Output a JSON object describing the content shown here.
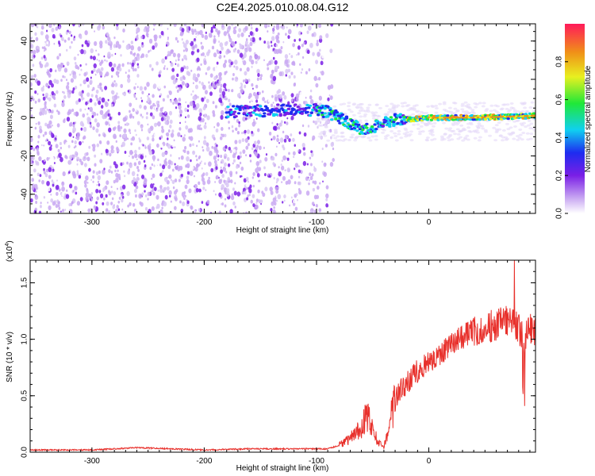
{
  "figure_title": "C2E4.2025.010.08.04.G12",
  "chart_data": [
    {
      "type": "heatmap",
      "title": "C2E4.2025.010.08.04.G12",
      "xlabel": "Height of straight line (km)",
      "ylabel": "Frequency (Hz)",
      "xlim": [
        -355,
        95
      ],
      "ylim": [
        -50,
        49
      ],
      "xticks": [
        -300,
        -200,
        -100,
        0
      ],
      "yticks": [
        -40,
        -20,
        0,
        20,
        40
      ],
      "colorbar": {
        "label": "Normalized spectral amplitude",
        "range": [
          0.0,
          1.0
        ],
        "ticks": [
          0.0,
          0.2,
          0.4,
          0.6,
          0.8
        ],
        "colormap": "rainbow (white-violet-blue-cyan-green-yellow-red)"
      },
      "signal_track": [
        {
          "x": -180,
          "y": 3
        },
        {
          "x": -130,
          "y": 4
        },
        {
          "x": -100,
          "y": 4
        },
        {
          "x": -90,
          "y": 3
        },
        {
          "x": -80,
          "y": 0
        },
        {
          "x": -70,
          "y": -3
        },
        {
          "x": -60,
          "y": -6
        },
        {
          "x": -50,
          "y": -5
        },
        {
          "x": -40,
          "y": -3
        },
        {
          "x": -30,
          "y": -1
        },
        {
          "x": -20,
          "y": -1
        },
        {
          "x": 0,
          "y": 0
        },
        {
          "x": 40,
          "y": 0
        },
        {
          "x": 95,
          "y": 1
        }
      ],
      "noise_region_x": [
        -355,
        -95
      ],
      "grid": false
    },
    {
      "type": "line",
      "xlabel": "Height of straight line (km)",
      "ylabel": "SNR (10 * v/v)",
      "y_multiplier": "(x10",
      "y_multiplier_exp": "4",
      "y_multiplier_close": ")",
      "xlim": [
        -355,
        95
      ],
      "ylim": [
        0,
        1.7
      ],
      "xticks": [
        -300,
        -200,
        -100,
        0
      ],
      "yticks": [
        0.0,
        0.5,
        1.0,
        1.5
      ],
      "color": "#e8312c",
      "series": [
        {
          "x": [
            -355,
            -300,
            -260,
            -200,
            -160,
            -130,
            -110,
            -90,
            -80,
            -70,
            -60,
            -55,
            -50,
            -45,
            -40,
            -35,
            -30,
            -25,
            -20,
            -10,
            0,
            10,
            20,
            30,
            40,
            50,
            60,
            70,
            80,
            85,
            90,
            95
          ],
          "values": [
            0.02,
            0.02,
            0.04,
            0.02,
            0.03,
            0.03,
            0.03,
            0.03,
            0.06,
            0.12,
            0.22,
            0.33,
            0.2,
            0.08,
            0.05,
            0.25,
            0.45,
            0.55,
            0.62,
            0.72,
            0.8,
            0.88,
            0.95,
            1.02,
            1.08,
            1.1,
            1.12,
            1.15,
            1.1,
            0.95,
            1.12,
            1.05
          ]
        }
      ]
    }
  ]
}
